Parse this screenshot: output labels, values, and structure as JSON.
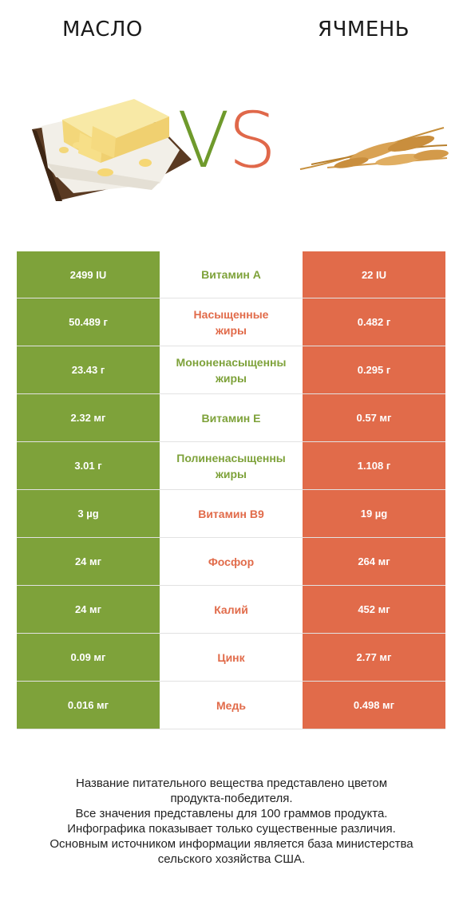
{
  "header": {
    "left_title": "МАСЛО",
    "right_title": "ЯЧМЕНЬ",
    "vs_v": "V",
    "vs_s": "S"
  },
  "colors": {
    "left_winner": "#7ea23a",
    "right_winner": "#e16b4a"
  },
  "rows": [
    {
      "left": "2499 IU",
      "name": "Витамин A",
      "right": "22 IU",
      "winner": "left"
    },
    {
      "left": "50.489 г",
      "name": "Насыщенные\nжиры",
      "right": "0.482 г",
      "winner": "right"
    },
    {
      "left": "23.43 г",
      "name": "Мононенасыщенны\nжиры",
      "right": "0.295 г",
      "winner": "left"
    },
    {
      "left": "2.32 мг",
      "name": "Витамин E",
      "right": "0.57 мг",
      "winner": "left"
    },
    {
      "left": "3.01 г",
      "name": "Полиненасыщенны\nжиры",
      "right": "1.108 г",
      "winner": "left"
    },
    {
      "left": "3 µg",
      "name": "Витамин B9",
      "right": "19 µg",
      "winner": "right"
    },
    {
      "left": "24 мг",
      "name": "Фосфор",
      "right": "264 мг",
      "winner": "right"
    },
    {
      "left": "24 мг",
      "name": "Калий",
      "right": "452 мг",
      "winner": "right"
    },
    {
      "left": "0.09 мг",
      "name": "Цинк",
      "right": "2.77 мг",
      "winner": "right"
    },
    {
      "left": "0.016 мг",
      "name": "Медь",
      "right": "0.498 мг",
      "winner": "right"
    }
  ],
  "footer": {
    "line1": "Название питательного вещества представлено цветом",
    "line2": "продукта-победителя.",
    "line3": "Все значения представлены для 100 граммов продукта.",
    "line4": "Инфографика показывает только существенные различия.",
    "line5": "Основным источником информации является база министерства",
    "line6": "сельского хозяйства США."
  }
}
